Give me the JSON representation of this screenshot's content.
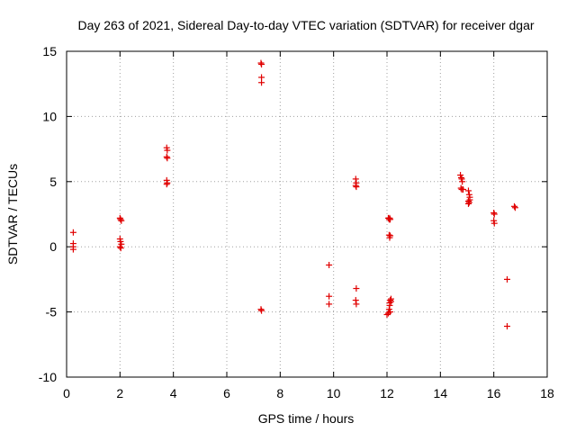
{
  "chart_data": {
    "type": "scatter",
    "title": "Day 263 of 2021, Sidereal Day-to-day VTEC variation (SDTVAR) for receiver dgar",
    "xlabel": "GPS time / hours",
    "ylabel": "SDTVAR / TECUs",
    "xlim": [
      0,
      18
    ],
    "ylim": [
      -10,
      15
    ],
    "xticks": [
      "0",
      "2",
      "4",
      "6",
      "8",
      "10",
      "12",
      "14",
      "16",
      "18"
    ],
    "yticks": [
      "-10",
      "-5",
      "0",
      "5",
      "10",
      "15"
    ],
    "grid": true,
    "marker": "plus",
    "color": "#e00000",
    "series": [
      {
        "name": "SDTVAR",
        "x": [
          0.25,
          0.25,
          0.25,
          0.25,
          2.0,
          2.02,
          2.05,
          2.0,
          2.02,
          2.05,
          2.0,
          2.03,
          3.75,
          3.77,
          3.75,
          3.77,
          3.75,
          3.77,
          3.75,
          7.28,
          7.3,
          7.3,
          7.3,
          7.28,
          7.3,
          9.83,
          9.83,
          9.83,
          10.83,
          10.85,
          10.83,
          10.85,
          10.85,
          10.83,
          10.85,
          12.05,
          12.08,
          12.1,
          12.12,
          12.08,
          12.1,
          12.12,
          12.0,
          12.05,
          12.08,
          12.1,
          12.1,
          12.12,
          12.15,
          12.15,
          12.12,
          14.75,
          14.78,
          14.8,
          14.82,
          14.77,
          14.8,
          14.85,
          15.05,
          15.08,
          15.1,
          15.05,
          15.08,
          15.05,
          15.1,
          16.0,
          16.02,
          16.0,
          16.02,
          16.5,
          16.5,
          16.77,
          16.8
        ],
        "y": [
          1.1,
          0.25,
          0.0,
          -0.2,
          2.2,
          2.1,
          2.0,
          0.6,
          0.4,
          0.2,
          0.0,
          -0.1,
          7.6,
          7.4,
          6.9,
          6.8,
          5.1,
          4.9,
          4.8,
          14.1,
          14.0,
          13.0,
          12.6,
          -4.8,
          -4.9,
          -1.4,
          -3.8,
          -4.4,
          5.2,
          4.9,
          4.7,
          4.6,
          -3.2,
          -4.1,
          -4.4,
          2.2,
          2.1,
          2.2,
          2.1,
          0.9,
          0.7,
          0.85,
          -5.2,
          -5.1,
          -4.8,
          -4.5,
          -4.3,
          -4.1,
          -4.2,
          -4.0,
          -5.0,
          5.5,
          5.3,
          5.2,
          5.0,
          4.5,
          4.4,
          4.4,
          4.3,
          4.0,
          3.8,
          3.5,
          3.4,
          3.3,
          3.6,
          2.6,
          2.5,
          2.0,
          1.8,
          -2.5,
          -6.1,
          3.1,
          3.0
        ]
      }
    ]
  }
}
